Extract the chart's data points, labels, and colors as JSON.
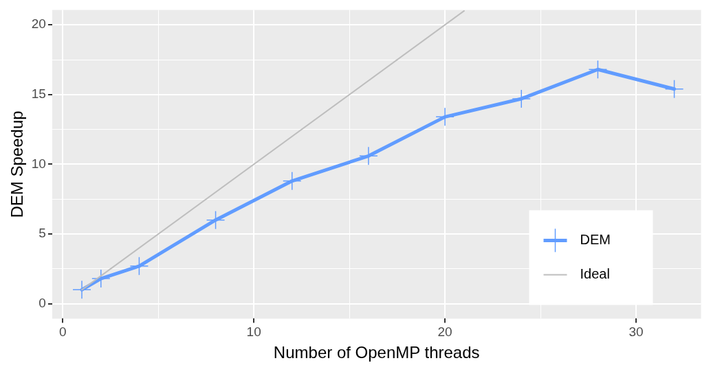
{
  "chart_data": {
    "type": "line",
    "xlabel": "Number of OpenMP threads",
    "ylabel": "DEM Speedup",
    "xlim": [
      -0.55,
      33.4
    ],
    "ylim": [
      -1.07,
      21.07
    ],
    "xticks": [
      0,
      {
        "value": 5,
        "label": null
      },
      10,
      {
        "value": 15,
        "label": null
      },
      20,
      {
        "value": 25,
        "label": null
      },
      30
    ],
    "yticks": [
      0,
      {
        "value": 2.5,
        "label": null
      },
      5,
      {
        "value": 7.5,
        "label": null
      },
      10,
      {
        "value": 12.5,
        "label": null
      },
      15,
      {
        "value": 17.5,
        "label": null
      },
      20
    ],
    "grid": true,
    "legend": "bottom right",
    "line_style": "solid",
    "marker": "cross",
    "series": [
      {
        "name": "DEM",
        "color": "#619cff",
        "x": [
          1,
          2,
          4,
          8,
          12,
          16,
          20,
          24,
          28,
          32
        ],
        "values": [
          1,
          1.8,
          2.7,
          6,
          8.8,
          10.6,
          13.4,
          14.7,
          16.8,
          15.4
        ]
      },
      {
        "name": "Ideal",
        "color": "#bebebe",
        "marker": "none",
        "x": [
          1,
          21
        ],
        "values": [
          1,
          21
        ]
      }
    ]
  }
}
